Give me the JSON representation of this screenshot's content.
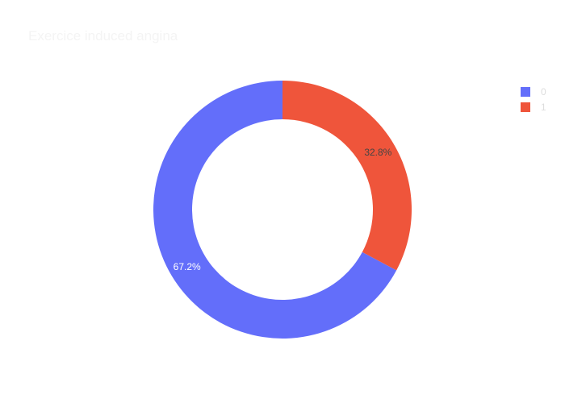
{
  "chart_data": {
    "type": "pie",
    "hole": 0.7,
    "title": "Exercice induced angina",
    "title_color": "#f4f4f4",
    "legend_placement": "right",
    "legend_text_color": "#dddddd",
    "slices": [
      {
        "label": "0",
        "percent_label": "67.2%",
        "value": 67.2,
        "color": "#636efa",
        "label_color": "#ffffff"
      },
      {
        "label": "1",
        "percent_label": "32.8%",
        "value": 32.8,
        "color": "#ef553b",
        "label_color": "#444444"
      }
    ]
  }
}
